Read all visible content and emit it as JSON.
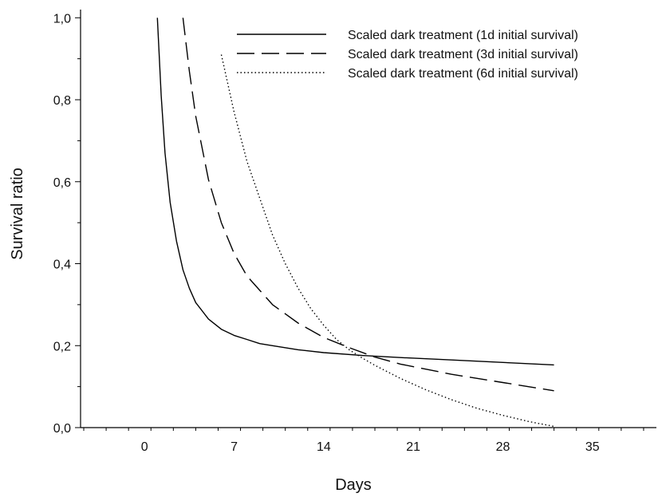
{
  "chart_data": {
    "type": "line",
    "title": "",
    "xlabel": "Days",
    "ylabel": "Survival ratio",
    "xlim": [
      -5,
      40
    ],
    "ylim": [
      0,
      1.02
    ],
    "x_ticks": [
      0,
      7,
      14,
      21,
      28,
      35
    ],
    "x_tick_labels": [
      "0",
      "7",
      "14",
      "21",
      "28",
      "35"
    ],
    "y_ticks": [
      0,
      0.2,
      0.4,
      0.6,
      0.8,
      1.0
    ],
    "y_tick_labels": [
      "0,0",
      "0,2",
      "0,4",
      "0,6",
      "0,8",
      "1,0"
    ],
    "grid": false,
    "legend_position": "top-right",
    "series": [
      {
        "name": "Scaled dark treatment (1d initial survival)",
        "style": "solid",
        "x": [
          1,
          1.3,
          1.6,
          2,
          2.5,
          3,
          3.5,
          4,
          5,
          6,
          7,
          8,
          9,
          10,
          12,
          14,
          17,
          20,
          24,
          28,
          32
        ],
        "y": [
          1.0,
          0.81,
          0.67,
          0.55,
          0.455,
          0.385,
          0.34,
          0.305,
          0.265,
          0.24,
          0.225,
          0.215,
          0.205,
          0.2,
          0.19,
          0.183,
          0.176,
          0.171,
          0.165,
          0.159,
          0.153
        ]
      },
      {
        "name": "Scaled dark treatment (3d initial survival)",
        "style": "dashed",
        "x": [
          3,
          3.5,
          4,
          5,
          6,
          7,
          8,
          10,
          12,
          14,
          16,
          18,
          20,
          24,
          28,
          32
        ],
        "y": [
          1.0,
          0.87,
          0.76,
          0.605,
          0.5,
          0.425,
          0.37,
          0.3,
          0.255,
          0.22,
          0.195,
          0.172,
          0.155,
          0.13,
          0.11,
          0.09
        ]
      },
      {
        "name": "Scaled dark treatment (6d initial survival)",
        "style": "dotted",
        "x": [
          6,
          7,
          8,
          9,
          10,
          11,
          12,
          13,
          14,
          15,
          16,
          17,
          18,
          20,
          22,
          24,
          26,
          28,
          30,
          32
        ],
        "y": [
          0.91,
          0.77,
          0.65,
          0.56,
          0.47,
          0.4,
          0.34,
          0.29,
          0.25,
          0.215,
          0.19,
          0.17,
          0.152,
          0.12,
          0.092,
          0.068,
          0.047,
          0.03,
          0.015,
          0.003
        ]
      }
    ]
  }
}
